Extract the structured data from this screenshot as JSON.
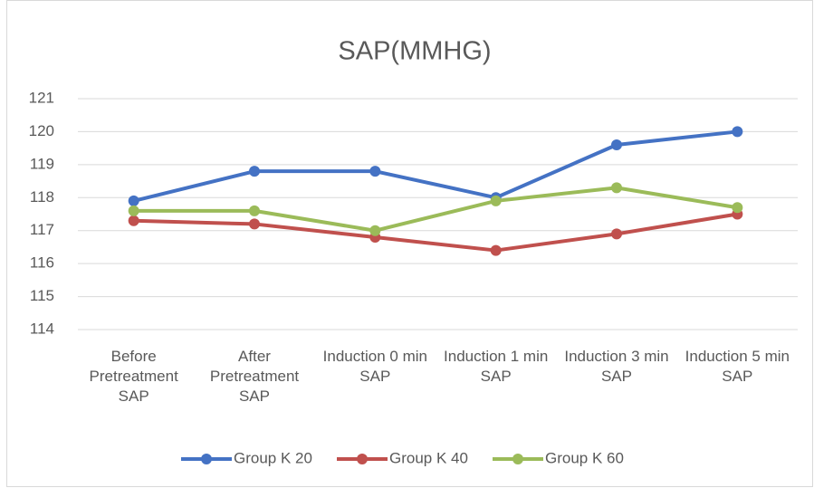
{
  "chart_data": {
    "type": "line",
    "title": "SAP(MMHG)",
    "categories": [
      "Before Pretreatment SAP",
      "After Pretreatment SAP",
      "Induction 0 min SAP",
      "Induction 1 min SAP",
      "Induction 3 min SAP",
      "Induction 5 min SAP"
    ],
    "series": [
      {
        "name": "Group K 20",
        "color": "#4472c4",
        "values": [
          117.9,
          118.8,
          118.8,
          118.0,
          119.6,
          120.0
        ]
      },
      {
        "name": "Group K 40",
        "color": "#c0504d",
        "values": [
          117.3,
          117.2,
          116.8,
          116.4,
          116.9,
          117.5
        ]
      },
      {
        "name": "Group K 60",
        "color": "#9bbb59",
        "values": [
          117.6,
          117.6,
          117.0,
          117.9,
          118.3,
          117.7
        ]
      }
    ],
    "ylim": [
      114,
      121
    ],
    "yticks": [
      114,
      115,
      116,
      117,
      118,
      119,
      120,
      121
    ],
    "grid": true,
    "legend": "bottom"
  }
}
